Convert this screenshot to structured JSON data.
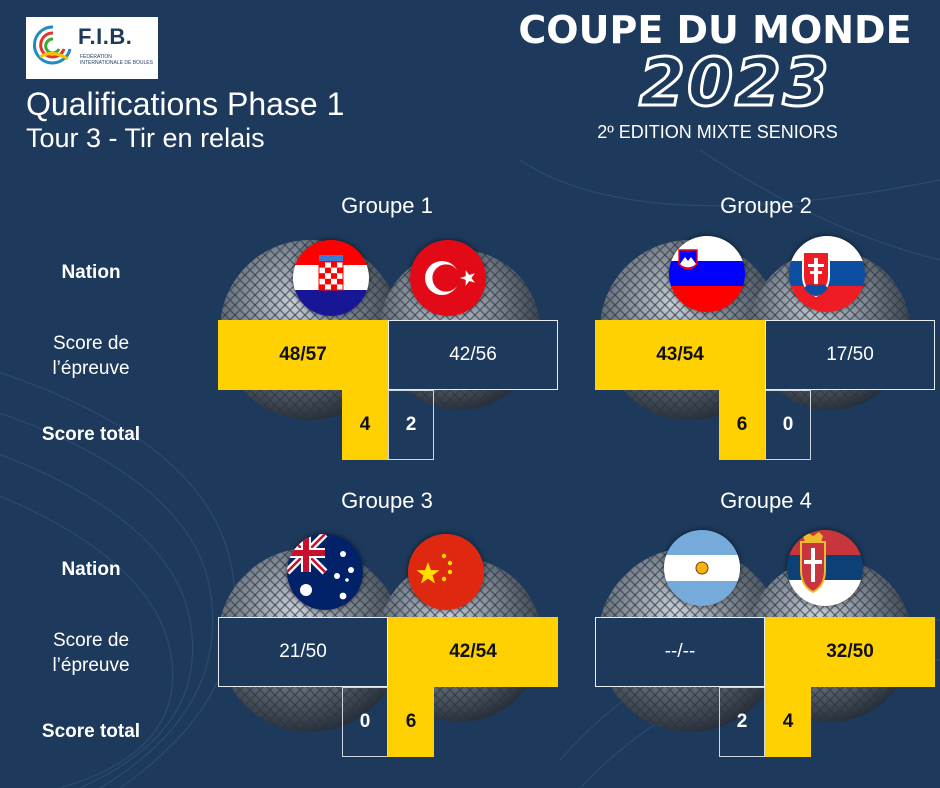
{
  "logo": {
    "text": "F.I.B.",
    "subtitle": "FÉDÉRATION INTERNATIONALE DE BOULES"
  },
  "title": {
    "line1": "Qualifications Phase 1",
    "line2": "Tour 3 - Tir en relais"
  },
  "event": {
    "title": "COUPE DU MONDE",
    "year": "2023",
    "subtitle": "2º EDITION MIXTE SENIORS"
  },
  "labels": {
    "nation": "Nation",
    "score_line1": "Score de",
    "score_line2": "l’épreuve",
    "total": "Score total"
  },
  "groups": [
    {
      "name": "Groupe 1",
      "nations": [
        "croatia-flag",
        "turkey-flag"
      ],
      "scores": [
        "48/57",
        "42/56"
      ],
      "totals": [
        "4",
        "2"
      ],
      "winner": 0
    },
    {
      "name": "Groupe 2",
      "nations": [
        "slovenia-flag",
        "slovakia-flag"
      ],
      "scores": [
        "43/54",
        "17/50"
      ],
      "totals": [
        "6",
        "0"
      ],
      "winner": 0
    },
    {
      "name": "Groupe 3",
      "nations": [
        "australia-flag",
        "china-flag"
      ],
      "scores": [
        "21/50",
        "42/54"
      ],
      "totals": [
        "0",
        "6"
      ],
      "winner": 1
    },
    {
      "name": "Groupe 4",
      "nations": [
        "argentina-flag",
        "serbia-flag"
      ],
      "scores": [
        "--/--",
        "32/50"
      ],
      "totals": [
        "2",
        "4"
      ],
      "winner": 1
    }
  ],
  "colors": {
    "background": "#1d3a5c",
    "highlight": "#ffd100",
    "text": "#ffffff"
  }
}
